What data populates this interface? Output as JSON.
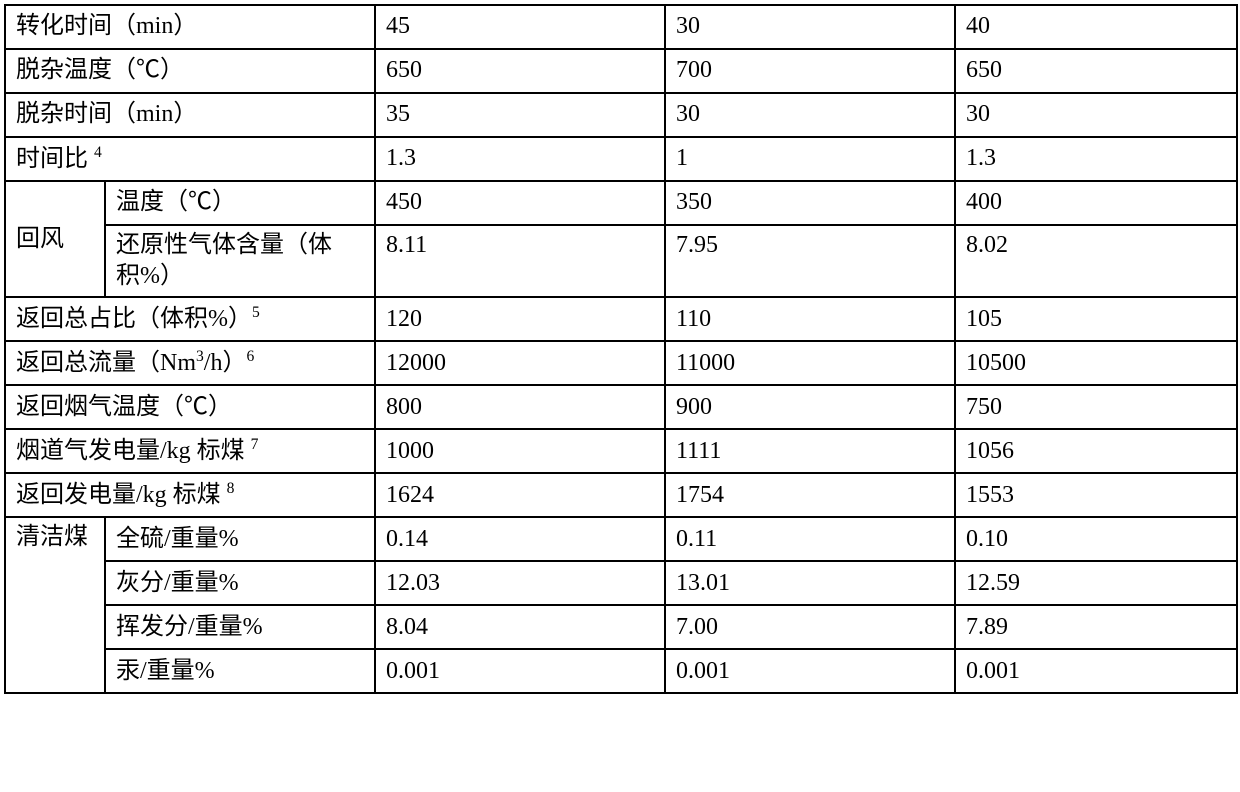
{
  "rows": {
    "r1": {
      "label": "转化时间（min）",
      "v1": "45",
      "v2": "30",
      "v3": "40"
    },
    "r2": {
      "label": "脱杂温度（℃）",
      "v1": "650",
      "v2": "700",
      "v3": "650"
    },
    "r3": {
      "label": "脱杂时间（min）",
      "v1": "35",
      "v2": "30",
      "v3": "30"
    },
    "r4": {
      "label_pre": "时间比",
      "sup": "4",
      "v1": "1.3",
      "v2": "1",
      "v3": "1.3"
    },
    "r5_group": "回风",
    "r5a": {
      "label": "温度（℃）",
      "v1": "450",
      "v2": "350",
      "v3": "400"
    },
    "r5b": {
      "label": "还原性气体含量（体积%）",
      "v1": "8.11",
      "v2": "7.95",
      "v3": "8.02"
    },
    "r6": {
      "label_pre": "返回总占比（体积%）",
      "sup": "5",
      "v1": "120",
      "v2": "110",
      "v3": "105"
    },
    "r7": {
      "label_pre": "返回总流量（Nm",
      "sup_mid": "3",
      "label_mid": "/h）",
      "sup": "6",
      "v1": "12000",
      "v2": "11000",
      "v3": "10500"
    },
    "r8": {
      "label": "返回烟气温度（℃）",
      "v1": "800",
      "v2": "900",
      "v3": "750"
    },
    "r9": {
      "label_pre": "烟道气发电量/kg 标煤",
      "sup": "7",
      "v1": "1000",
      "v2": "1111",
      "v3": "1056"
    },
    "r10": {
      "label_pre": "返回发电量/kg 标煤",
      "sup": "8",
      "v1": "1624",
      "v2": "1754",
      "v3": "1553"
    },
    "r11_group": "清洁煤",
    "r11a": {
      "label": "全硫/重量%",
      "v1": "0.14",
      "v2": "0.11",
      "v3": "0.10"
    },
    "r11b": {
      "label": "灰分/重量%",
      "v1": "12.03",
      "v2": "13.01",
      "v3": "12.59"
    },
    "r11c": {
      "label": "挥发分/重量%",
      "v1": "8.04",
      "v2": "7.00",
      "v3": "7.89"
    },
    "r11d": {
      "label": "汞/重量%",
      "v1": "0.001",
      "v2": "0.001",
      "v3": "0.001"
    }
  }
}
